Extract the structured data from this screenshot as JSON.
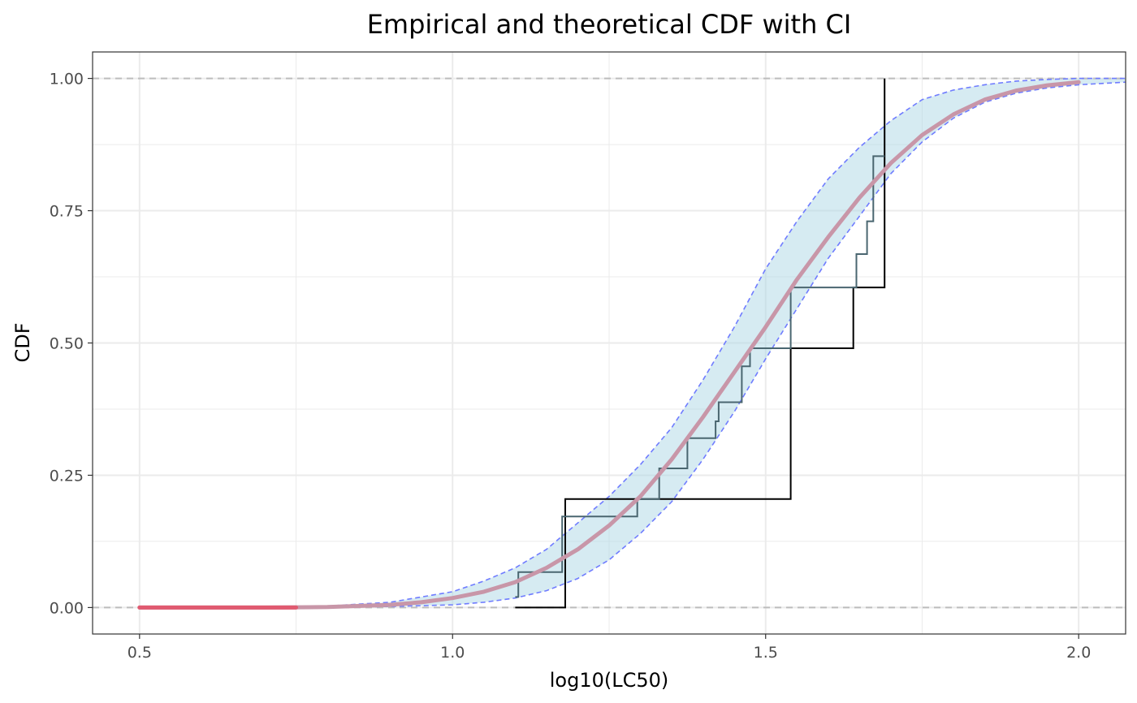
{
  "chart_data": {
    "type": "line",
    "title": "Empirical and theoretical CDF with CI",
    "xlabel": "log10(LC50)",
    "ylabel": "CDF",
    "xlim": [
      0.425,
      2.075
    ],
    "ylim": [
      -0.05,
      1.05
    ],
    "x_ticks": [
      {
        "value": 0.5,
        "label": "0.5"
      },
      {
        "value": 1.0,
        "label": "1.0"
      },
      {
        "value": 1.5,
        "label": "1.5"
      },
      {
        "value": 2.0,
        "label": "2.0"
      }
    ],
    "y_ticks": [
      {
        "value": 0.0,
        "label": "0.00"
      },
      {
        "value": 0.25,
        "label": "0.25"
      },
      {
        "value": 0.5,
        "label": "0.50"
      },
      {
        "value": 0.75,
        "label": "0.75"
      },
      {
        "value": 1.0,
        "label": "1.00"
      }
    ],
    "grid": true,
    "reference_lines_y": [
      0,
      1
    ],
    "colors": {
      "ci_fill": "#add8e6",
      "ci_bounds": "#6f7cff",
      "theoretical": "#c896a8",
      "theoretical_left": "#e05a70",
      "empirical": "#000000",
      "empirical_fit": "#4a6670",
      "reference": "#bdbdbd",
      "grid": "#ebebeb"
    },
    "series": [
      {
        "kind": "ci_band",
        "x": [
          0.5,
          0.8,
          0.9,
          1.0,
          1.05,
          1.1,
          1.15,
          1.2,
          1.25,
          1.3,
          1.35,
          1.4,
          1.45,
          1.5,
          1.55,
          1.6,
          1.65,
          1.7,
          1.75,
          1.8,
          1.85,
          1.9,
          1.95,
          2.0,
          2.075
        ],
        "lower": [
          0.0,
          0.0,
          0.002,
          0.005,
          0.01,
          0.018,
          0.032,
          0.055,
          0.09,
          0.14,
          0.2,
          0.28,
          0.37,
          0.47,
          0.565,
          0.66,
          0.74,
          0.82,
          0.88,
          0.925,
          0.955,
          0.972,
          0.982,
          0.988,
          0.993
        ],
        "upper": [
          0.0,
          0.003,
          0.01,
          0.03,
          0.05,
          0.075,
          0.11,
          0.16,
          0.21,
          0.27,
          0.34,
          0.43,
          0.53,
          0.64,
          0.73,
          0.81,
          0.87,
          0.92,
          0.96,
          0.978,
          0.988,
          0.995,
          0.998,
          1.0,
          1.0
        ]
      },
      {
        "kind": "theoretical_cdf",
        "x": [
          0.5,
          0.7,
          0.8,
          0.9,
          0.95,
          1.0,
          1.05,
          1.1,
          1.15,
          1.2,
          1.25,
          1.3,
          1.35,
          1.4,
          1.45,
          1.5,
          1.55,
          1.6,
          1.65,
          1.7,
          1.75,
          1.8,
          1.85,
          1.9,
          1.95,
          2.0
        ],
        "y": [
          0.0,
          0.0,
          0.001,
          0.005,
          0.01,
          0.018,
          0.03,
          0.048,
          0.075,
          0.11,
          0.155,
          0.21,
          0.28,
          0.36,
          0.445,
          0.53,
          0.62,
          0.7,
          0.775,
          0.84,
          0.893,
          0.932,
          0.96,
          0.977,
          0.987,
          0.993
        ]
      },
      {
        "kind": "empirical_cdf",
        "x": [
          1.1,
          1.18,
          1.54,
          1.64,
          1.69
        ],
        "y": [
          0.0,
          0.205,
          0.49,
          0.605,
          1.0
        ]
      },
      {
        "kind": "empirical_step",
        "x": [
          1.1,
          1.105,
          1.175,
          1.295,
          1.33,
          1.375,
          1.42,
          1.425,
          1.462,
          1.475,
          1.54,
          1.645,
          1.662,
          1.672,
          1.69
        ],
        "y": [
          0.02,
          0.067,
          0.172,
          0.205,
          0.263,
          0.32,
          0.352,
          0.388,
          0.456,
          0.49,
          0.605,
          0.668,
          0.73,
          0.853,
          0.853
        ]
      }
    ]
  }
}
